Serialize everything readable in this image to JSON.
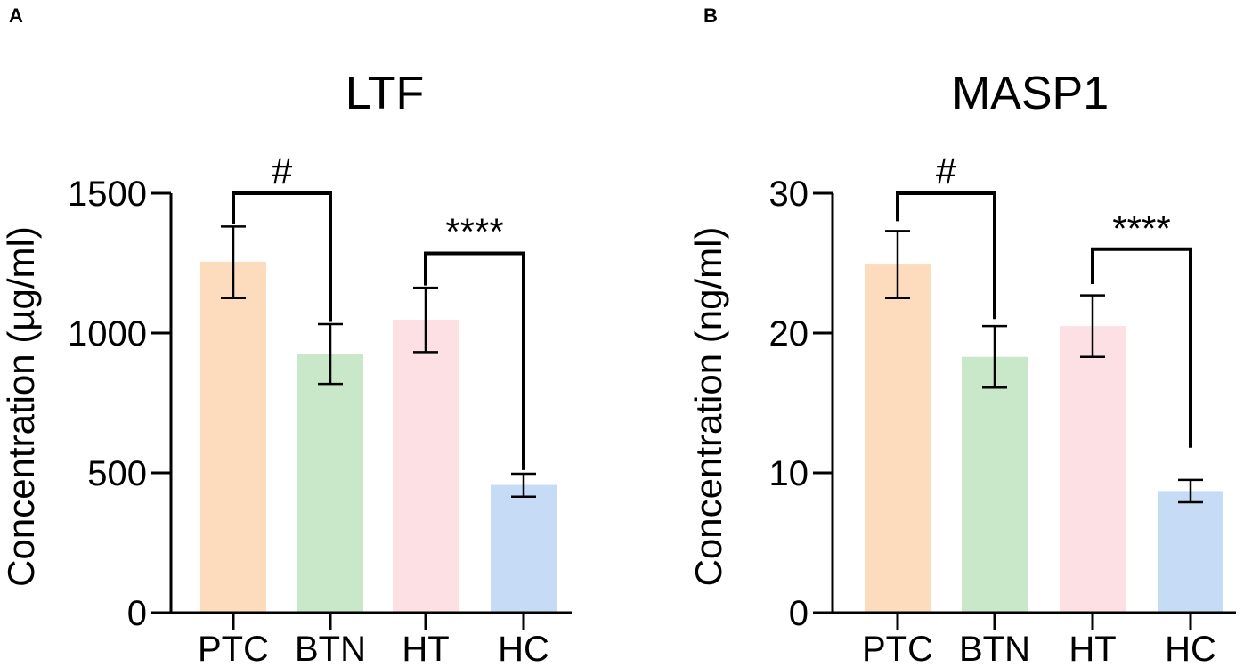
{
  "chart_data": [
    {
      "panel": "A",
      "type": "bar",
      "title": "LTF",
      "ylabel": "Concentration (µg/ml)",
      "xlabel": "",
      "categories": [
        "PTC",
        "BTN",
        "HT",
        "HC"
      ],
      "values": [
        1255,
        925,
        1048,
        457
      ],
      "error_low": [
        1125,
        818,
        932,
        415
      ],
      "error_high": [
        1381,
        1032,
        1162,
        497
      ],
      "ylim": [
        0,
        1500
      ],
      "yticks": [
        0,
        500,
        1000,
        1500
      ],
      "ytick_labels": [
        "0",
        "500",
        "1000",
        "1500"
      ],
      "colors": [
        "#fcdcbc",
        "#c9e8c9",
        "#fde0e4",
        "#c6dcf6"
      ],
      "annotations": [
        {
          "text": "#",
          "from": 0,
          "to": 1,
          "y_left": 1390,
          "y_right": 1040,
          "y_top": 1500,
          "label_y": 1590
        },
        {
          "text": "****",
          "from": 2,
          "to": 3,
          "y_left": 1170,
          "y_right": 510,
          "y_top": 1285,
          "label_y": 1375
        }
      ]
    },
    {
      "panel": "B",
      "type": "bar",
      "title": "MASP1",
      "ylabel": "Concentration (ng/ml)",
      "xlabel": "",
      "categories": [
        "PTC",
        "BTN",
        "HT",
        "HC"
      ],
      "values": [
        24.9,
        18.3,
        20.5,
        8.7
      ],
      "error_low": [
        22.5,
        16.1,
        18.3,
        7.9
      ],
      "error_high": [
        27.3,
        20.5,
        22.7,
        9.5
      ],
      "ylim": [
        0,
        30
      ],
      "yticks": [
        0,
        10,
        20,
        30
      ],
      "ytick_labels": [
        "0",
        "10",
        "20",
        "30"
      ],
      "colors": [
        "#fcdcbc",
        "#c9e8c9",
        "#fde0e4",
        "#c6dcf6"
      ],
      "annotations": [
        {
          "text": "#",
          "from": 0,
          "to": 1,
          "y_left": 28,
          "y_right": 21,
          "y_top": 30,
          "label_y": 31.8
        },
        {
          "text": "****",
          "from": 2,
          "to": 3,
          "y_left": 23.5,
          "y_right": 11.8,
          "y_top": 26,
          "label_y": 27.7
        }
      ]
    }
  ]
}
